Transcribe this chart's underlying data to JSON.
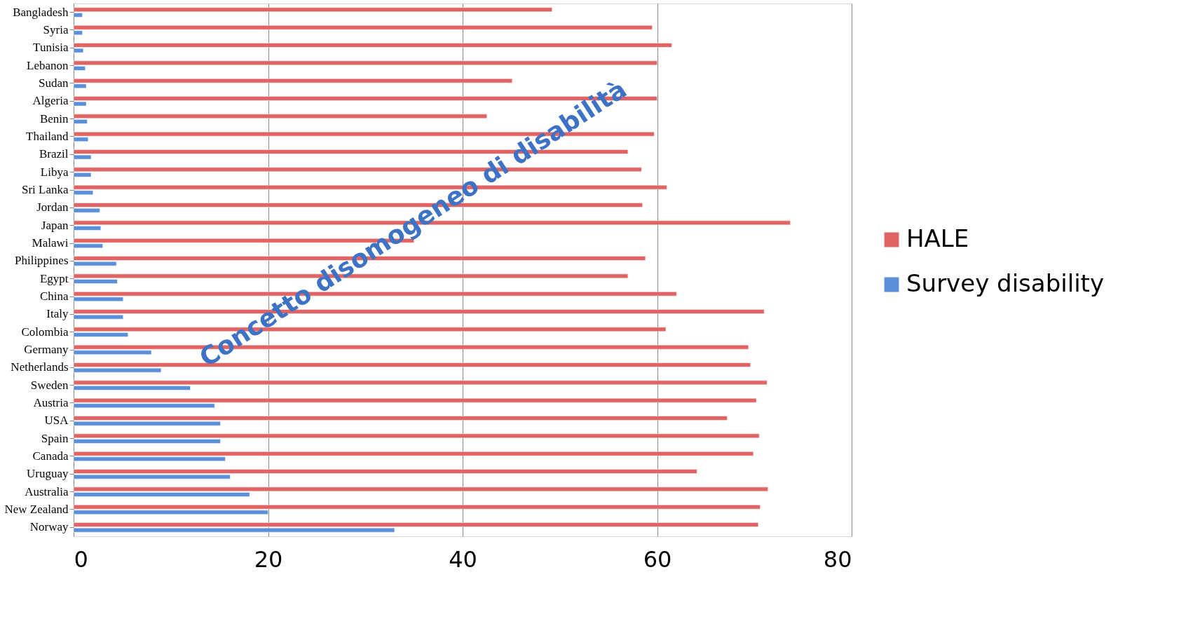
{
  "chart_data": {
    "type": "bar",
    "orientation": "horizontal",
    "annotations": [
      "Concetto disomogeneo di disabilità"
    ],
    "categories": [
      "Bangladesh",
      "Syria",
      "Tunisia",
      "Lebanon",
      "Sudan",
      "Algeria",
      "Benin",
      "Thailand",
      "Brazil",
      "Libya",
      "Sri Lanka",
      "Jordan",
      "Japan",
      "Malawi",
      "Philippines",
      "Egypt",
      "China",
      "Italy",
      "Colombia",
      "Germany",
      "Netherlands",
      "Sweden",
      "Austria",
      "USA",
      "Spain",
      "Canada",
      "Uruguay",
      "Australia",
      "New Zealand",
      "Norway"
    ],
    "series": [
      {
        "name": "HALE",
        "color": "#e06464",
        "values": [
          49.2,
          59.5,
          61.5,
          60,
          45.1,
          60,
          42.5,
          59.7,
          57,
          58.4,
          61,
          58.5,
          73.7,
          35,
          58.8,
          57,
          62,
          71,
          60.9,
          69.4,
          69.6,
          71.3,
          70.2,
          67.2,
          70.5,
          69.9,
          64.1,
          71.4,
          70.6,
          70.4
        ]
      },
      {
        "name": "Survey disability",
        "color": "#5b8fd9",
        "values": [
          0.9,
          0.9,
          1,
          1.2,
          1.3,
          1.3,
          1.4,
          1.5,
          1.8,
          1.8,
          2,
          2.7,
          2.8,
          3,
          4.4,
          4.5,
          5.1,
          5.1,
          5.6,
          8,
          9,
          12,
          14.5,
          15.1,
          15.1,
          15.6,
          16.1,
          18.1,
          20,
          33
        ]
      }
    ],
    "xlim": [
      0,
      80
    ],
    "xticks": [
      0,
      20,
      40,
      60,
      80
    ],
    "grid": "x",
    "legend": "right"
  }
}
